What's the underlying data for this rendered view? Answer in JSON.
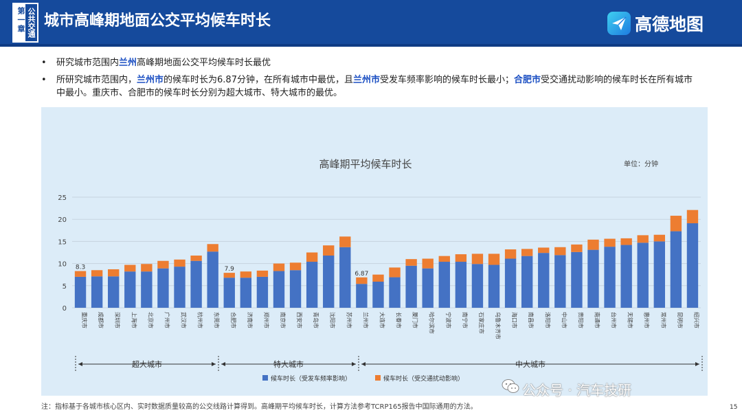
{
  "header": {
    "chapter_left": "第一章",
    "chapter_right": "公共交通",
    "title": "城市高峰期地面公交平均候车时长",
    "logo_text": "高德地图"
  },
  "bullets": {
    "b1_a": "研究城市范围内",
    "b1_hl": "兰州",
    "b1_b": "高峰期地面公交平均候车时长最优",
    "b2_a": "所研究城市范围内，",
    "b2_hl1": "兰州市",
    "b2_b": "的候车时长为6.87分钟，在所有城市中最优，且",
    "b2_hl2": "兰州市",
    "b2_c": "受发车频率影响的候车时长最小；",
    "b2_hl3": "合肥市",
    "b2_d": "受交通扰动影响的候车时长在所有城市中最小。重庆市、合肥市的候车时长分别为超大城市、特大城市的最优。"
  },
  "chart_data": {
    "type": "bar",
    "stacked": true,
    "title": "高峰期平均候车时长",
    "unit_label": "单位：分钟",
    "ylim": [
      0,
      25
    ],
    "yticks": [
      0,
      5,
      10,
      15,
      20,
      25
    ],
    "categories": [
      "重庆市",
      "成都市",
      "深圳市",
      "上海市",
      "北京市",
      "广州市",
      "武汉市",
      "杭州市",
      "东莞市",
      "合肥市",
      "济南市",
      "郑州市",
      "南京市",
      "西安市",
      "青岛市",
      "沈阳市",
      "苏州市",
      "兰州市",
      "大连市",
      "长春市",
      "厦门市",
      "哈尔滨市",
      "宁波市",
      "南宁市",
      "石家庄市",
      "乌鲁木齐市",
      "海口市",
      "南昌市",
      "洛阳市",
      "中山市",
      "贵阳市",
      "南通市",
      "台州市",
      "无锡市",
      "惠州市",
      "常州市",
      "昆明市",
      "绍兴市"
    ],
    "series": [
      {
        "name": "候车时长（受发车频率影响）",
        "color": "#4472c4",
        "values": [
          7.0,
          7.1,
          7.1,
          8.2,
          8.2,
          8.9,
          9.3,
          10.6,
          12.7,
          6.8,
          6.8,
          7.0,
          8.3,
          8.5,
          10.4,
          11.8,
          13.7,
          5.4,
          5.9,
          6.9,
          9.5,
          8.9,
          10.4,
          10.4,
          9.9,
          9.7,
          11.1,
          11.7,
          12.4,
          11.9,
          12.6,
          13.1,
          13.8,
          14.2,
          14.7,
          15.0,
          17.3,
          19.1
        ]
      },
      {
        "name": "候车时长（受交通扰动影响）",
        "color": "#ed7d31",
        "values": [
          1.3,
          1.4,
          1.6,
          1.5,
          1.7,
          1.7,
          1.6,
          1.2,
          1.7,
          1.1,
          1.4,
          1.4,
          1.7,
          1.7,
          2.1,
          2.3,
          2.4,
          1.47,
          1.6,
          2.2,
          1.5,
          2.2,
          1.3,
          1.7,
          2.3,
          2.5,
          2.1,
          1.6,
          1.2,
          1.8,
          1.7,
          2.3,
          1.8,
          1.5,
          1.7,
          1.5,
          3.5,
          3.0
        ]
      }
    ],
    "data_labels": {
      "重庆市": "8.3",
      "合肥市": "7.9",
      "兰州市": "6.87"
    },
    "groups": [
      {
        "label": "超大城市",
        "from": 0,
        "to": 8
      },
      {
        "label": "特大城市",
        "from": 9,
        "to": 16
      },
      {
        "label": "中大城市",
        "from": 17,
        "to": 37
      }
    ],
    "grid": true,
    "legend_position": "bottom"
  },
  "footnote": "注：指标基于各城市核心区内、实时数据质量较高的公交线路计算得到。高峰期平均候车时长，计算方法参考TCRP165报告中国际通用的方法。",
  "watermark": "公众号 · 汽车技研",
  "page_number": "15"
}
